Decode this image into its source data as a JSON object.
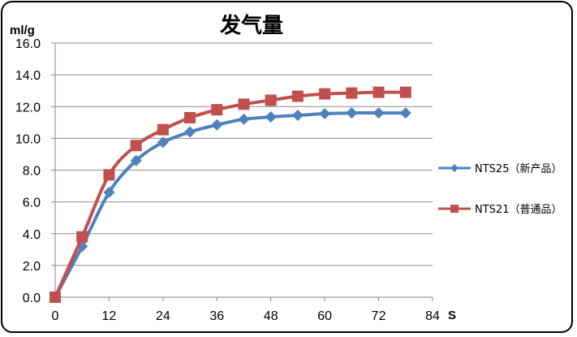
{
  "chart_data": {
    "type": "line",
    "title": "发气量",
    "ylabel": "ml/g",
    "xlabel": "S",
    "xlim": [
      0,
      84
    ],
    "ylim": [
      0,
      16
    ],
    "x_ticks": [
      "0",
      "12",
      "24",
      "36",
      "48",
      "60",
      "72",
      "84"
    ],
    "y_ticks": [
      "0.0",
      "2.0",
      "4.0",
      "6.0",
      "8.0",
      "10.0",
      "12.0",
      "14.0",
      "16.0"
    ],
    "grid": true,
    "legend_position": "right",
    "x": [
      0,
      6,
      12,
      18,
      24,
      30,
      36,
      42,
      48,
      54,
      60,
      66,
      72,
      78
    ],
    "series": [
      {
        "name": "NTS25（新产品）",
        "marker": "diamond",
        "color": "#4F81BD",
        "values": [
          0.0,
          3.2,
          6.6,
          8.6,
          9.75,
          10.4,
          10.85,
          11.2,
          11.35,
          11.45,
          11.55,
          11.6,
          11.6,
          11.6
        ]
      },
      {
        "name": "NTS21（普通品）",
        "marker": "square",
        "color": "#C0504D",
        "values": [
          0.0,
          3.8,
          7.7,
          9.55,
          10.55,
          11.3,
          11.8,
          12.15,
          12.4,
          12.65,
          12.8,
          12.85,
          12.9,
          12.9
        ]
      }
    ]
  }
}
